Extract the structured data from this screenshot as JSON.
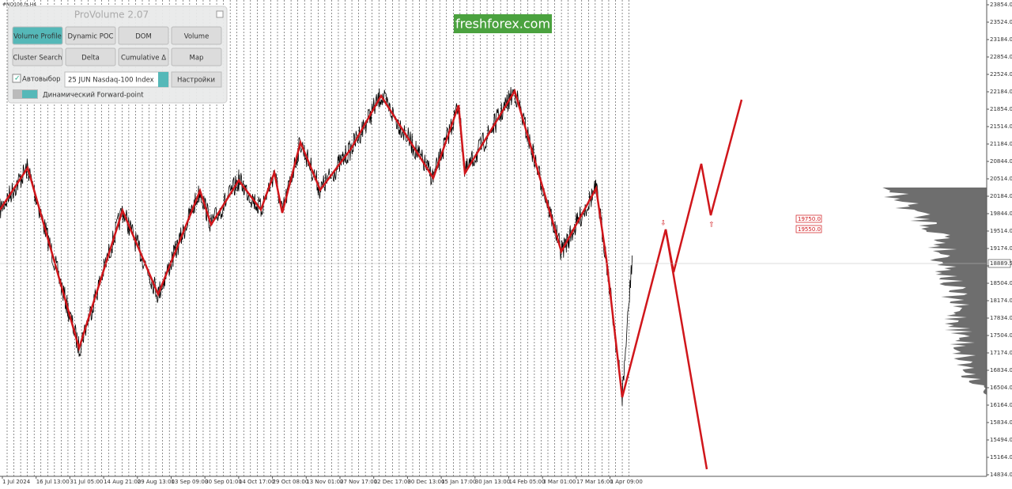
{
  "symbol": "#NQ100.fs,H4",
  "watermark": "freshforex.com",
  "panel": {
    "title": "ProVolume 2.07",
    "buttons": [
      "Volume Profile",
      "Dynamic POC",
      "DOM",
      "Volume",
      "Cluster Search",
      "Delta",
      "Cumulative Δ",
      "Map"
    ],
    "auto_select": "Автовыбор",
    "instrument": "25 JUN Nasdaq-100 Index",
    "settings": "Настройки",
    "forward_point": "Динамический Forward-point"
  },
  "price_axis": [
    "23854.0",
    "23524.0",
    "23184.0",
    "22854.0",
    "22524.0",
    "22184.0",
    "21854.0",
    "21514.0",
    "21184.0",
    "20844.0",
    "20514.0",
    "20184.0",
    "19844.0",
    "19514.0",
    "19174.0",
    "18844.0",
    "18504.0",
    "18174.0",
    "17834.0",
    "17504.0",
    "17174.0",
    "16834.0",
    "16504.0",
    "16164.0",
    "15834.0",
    "15494.0",
    "15164.0",
    "14834.0"
  ],
  "current_price": "18889.5",
  "levels": [
    "19750.0",
    "19550.0"
  ],
  "time_axis": [
    "1 Jul 2024",
    "16 Jul 13:00",
    "31 Jul 05:00",
    "14 Aug 21:00",
    "29 Aug 13:00",
    "13 Sep 09:00",
    "30 Sep 01:00",
    "14 Oct 17:00",
    "29 Oct 08:00",
    "13 Nov 01:00",
    "27 Nov 17:00",
    "12 Dec 17:00",
    "30 Dec 13:00",
    "15 Jan 17:00",
    "30 Jan 13:00",
    "14 Feb 05:00",
    "3 Mar 01:00",
    "17 Mar 16:00",
    "1 Apr 09:00"
  ]
}
